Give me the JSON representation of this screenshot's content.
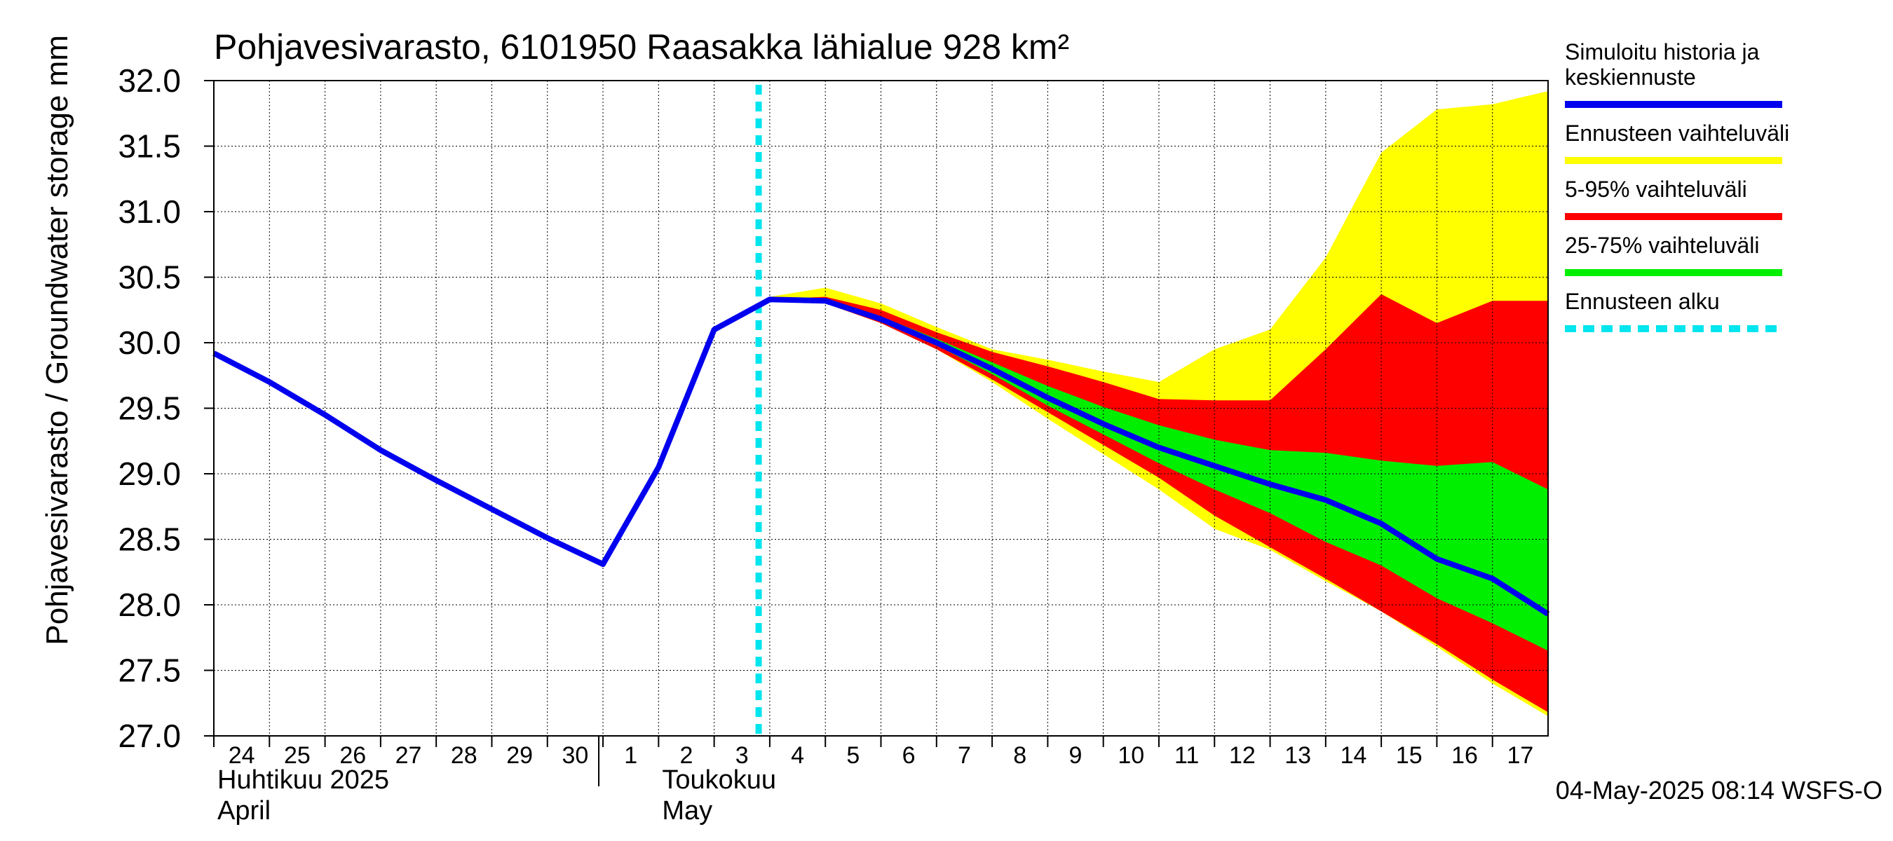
{
  "chart_data": {
    "type": "area",
    "title": "Pohjavesivarasto, 6101950 Raasakka lähialue 928 km²",
    "ylabel": "Pohjavesivarasto / Groundwater storage   mm",
    "ylim": [
      27.0,
      32.0
    ],
    "yticks": [
      "27.0",
      "27.5",
      "28.0",
      "28.5",
      "29.0",
      "29.5",
      "30.0",
      "30.5",
      "31.0",
      "31.5",
      "32.0"
    ],
    "x_days": [
      "24",
      "25",
      "26",
      "27",
      "28",
      "29",
      "30",
      "1",
      "2",
      "3",
      "4",
      "5",
      "6",
      "7",
      "8",
      "9",
      "10",
      "11",
      "12",
      "13",
      "14",
      "15",
      "16",
      "17"
    ],
    "month_labels": [
      {
        "fi": "Huhtikuu  2025",
        "en": "April"
      },
      {
        "fi": "Toukokuu",
        "en": "May"
      }
    ],
    "forecast_start": "2025-05-03",
    "x": [
      "2025-04-24",
      "2025-04-25",
      "2025-04-26",
      "2025-04-27",
      "2025-04-28",
      "2025-04-29",
      "2025-04-30",
      "2025-05-01",
      "2025-05-02",
      "2025-05-03",
      "2025-05-04",
      "2025-05-05",
      "2025-05-06",
      "2025-05-07",
      "2025-05-08",
      "2025-05-09",
      "2025-05-10",
      "2025-05-11",
      "2025-05-12",
      "2025-05-13",
      "2025-05-14",
      "2025-05-15",
      "2025-05-16",
      "2025-05-17",
      "2025-05-18"
    ],
    "series": [
      {
        "name": "Simuloitu historia ja keskiennuste",
        "color": "#0000ee",
        "values": [
          29.92,
          29.7,
          29.45,
          29.18,
          28.95,
          28.73,
          28.51,
          28.31,
          29.05,
          30.1,
          30.33,
          30.32,
          30.18,
          30.0,
          29.8,
          29.58,
          29.38,
          29.2,
          29.06,
          28.92,
          28.8,
          28.62,
          28.35,
          28.2,
          27.93
        ]
      }
    ],
    "bands": [
      {
        "name": "Ennusteen vaihteluväli",
        "color": "#ffff00",
        "start_index": 10,
        "upper": [
          30.35,
          30.42,
          30.3,
          30.12,
          29.95,
          29.87,
          29.78,
          29.7,
          29.95,
          30.1,
          30.65,
          31.45,
          31.78,
          31.82,
          31.92
        ],
        "lower": [
          30.33,
          30.3,
          30.15,
          29.95,
          29.7,
          29.42,
          29.15,
          28.88,
          28.58,
          28.42,
          28.18,
          27.95,
          27.68,
          27.4,
          27.15
        ]
      },
      {
        "name": "5-95% vaihteluväli",
        "color": "#ff0000",
        "start_index": 10,
        "upper": [
          30.33,
          30.35,
          30.25,
          30.08,
          29.93,
          29.82,
          29.7,
          29.57,
          29.56,
          29.56,
          29.95,
          30.37,
          30.15,
          30.32,
          30.32
        ],
        "lower": [
          30.33,
          30.3,
          30.15,
          29.95,
          29.72,
          29.47,
          29.22,
          28.97,
          28.68,
          28.44,
          28.2,
          27.95,
          27.7,
          27.43,
          27.18
        ]
      },
      {
        "name": "25-75% vaihteluväli",
        "color": "#00ee00",
        "start_index": 10,
        "upper": [
          30.33,
          30.33,
          30.2,
          30.03,
          29.85,
          29.67,
          29.51,
          29.37,
          29.26,
          29.18,
          29.16,
          29.1,
          29.06,
          29.09,
          28.88
        ],
        "lower": [
          30.33,
          30.32,
          30.17,
          29.98,
          29.76,
          29.52,
          29.3,
          29.08,
          28.88,
          28.7,
          28.48,
          28.3,
          28.05,
          27.86,
          27.65
        ]
      }
    ],
    "legend": [
      {
        "label_lines": [
          "Simuloitu historia ja",
          "keskiennuste"
        ],
        "color": "#0000ee",
        "style": "solid"
      },
      {
        "label_lines": [
          "Ennusteen vaihteluväli"
        ],
        "color": "#ffff00",
        "style": "solid"
      },
      {
        "label_lines": [
          "5-95% vaihteluväli"
        ],
        "color": "#ff0000",
        "style": "solid"
      },
      {
        "label_lines": [
          "25-75% vaihteluväli"
        ],
        "color": "#00ee00",
        "style": "solid"
      },
      {
        "label_lines": [
          "Ennusteen alku"
        ],
        "color": "#00e5ee",
        "style": "dashed"
      }
    ],
    "grid": true,
    "legend_position": "right",
    "footer": "04-May-2025 08:14 WSFS-O"
  }
}
